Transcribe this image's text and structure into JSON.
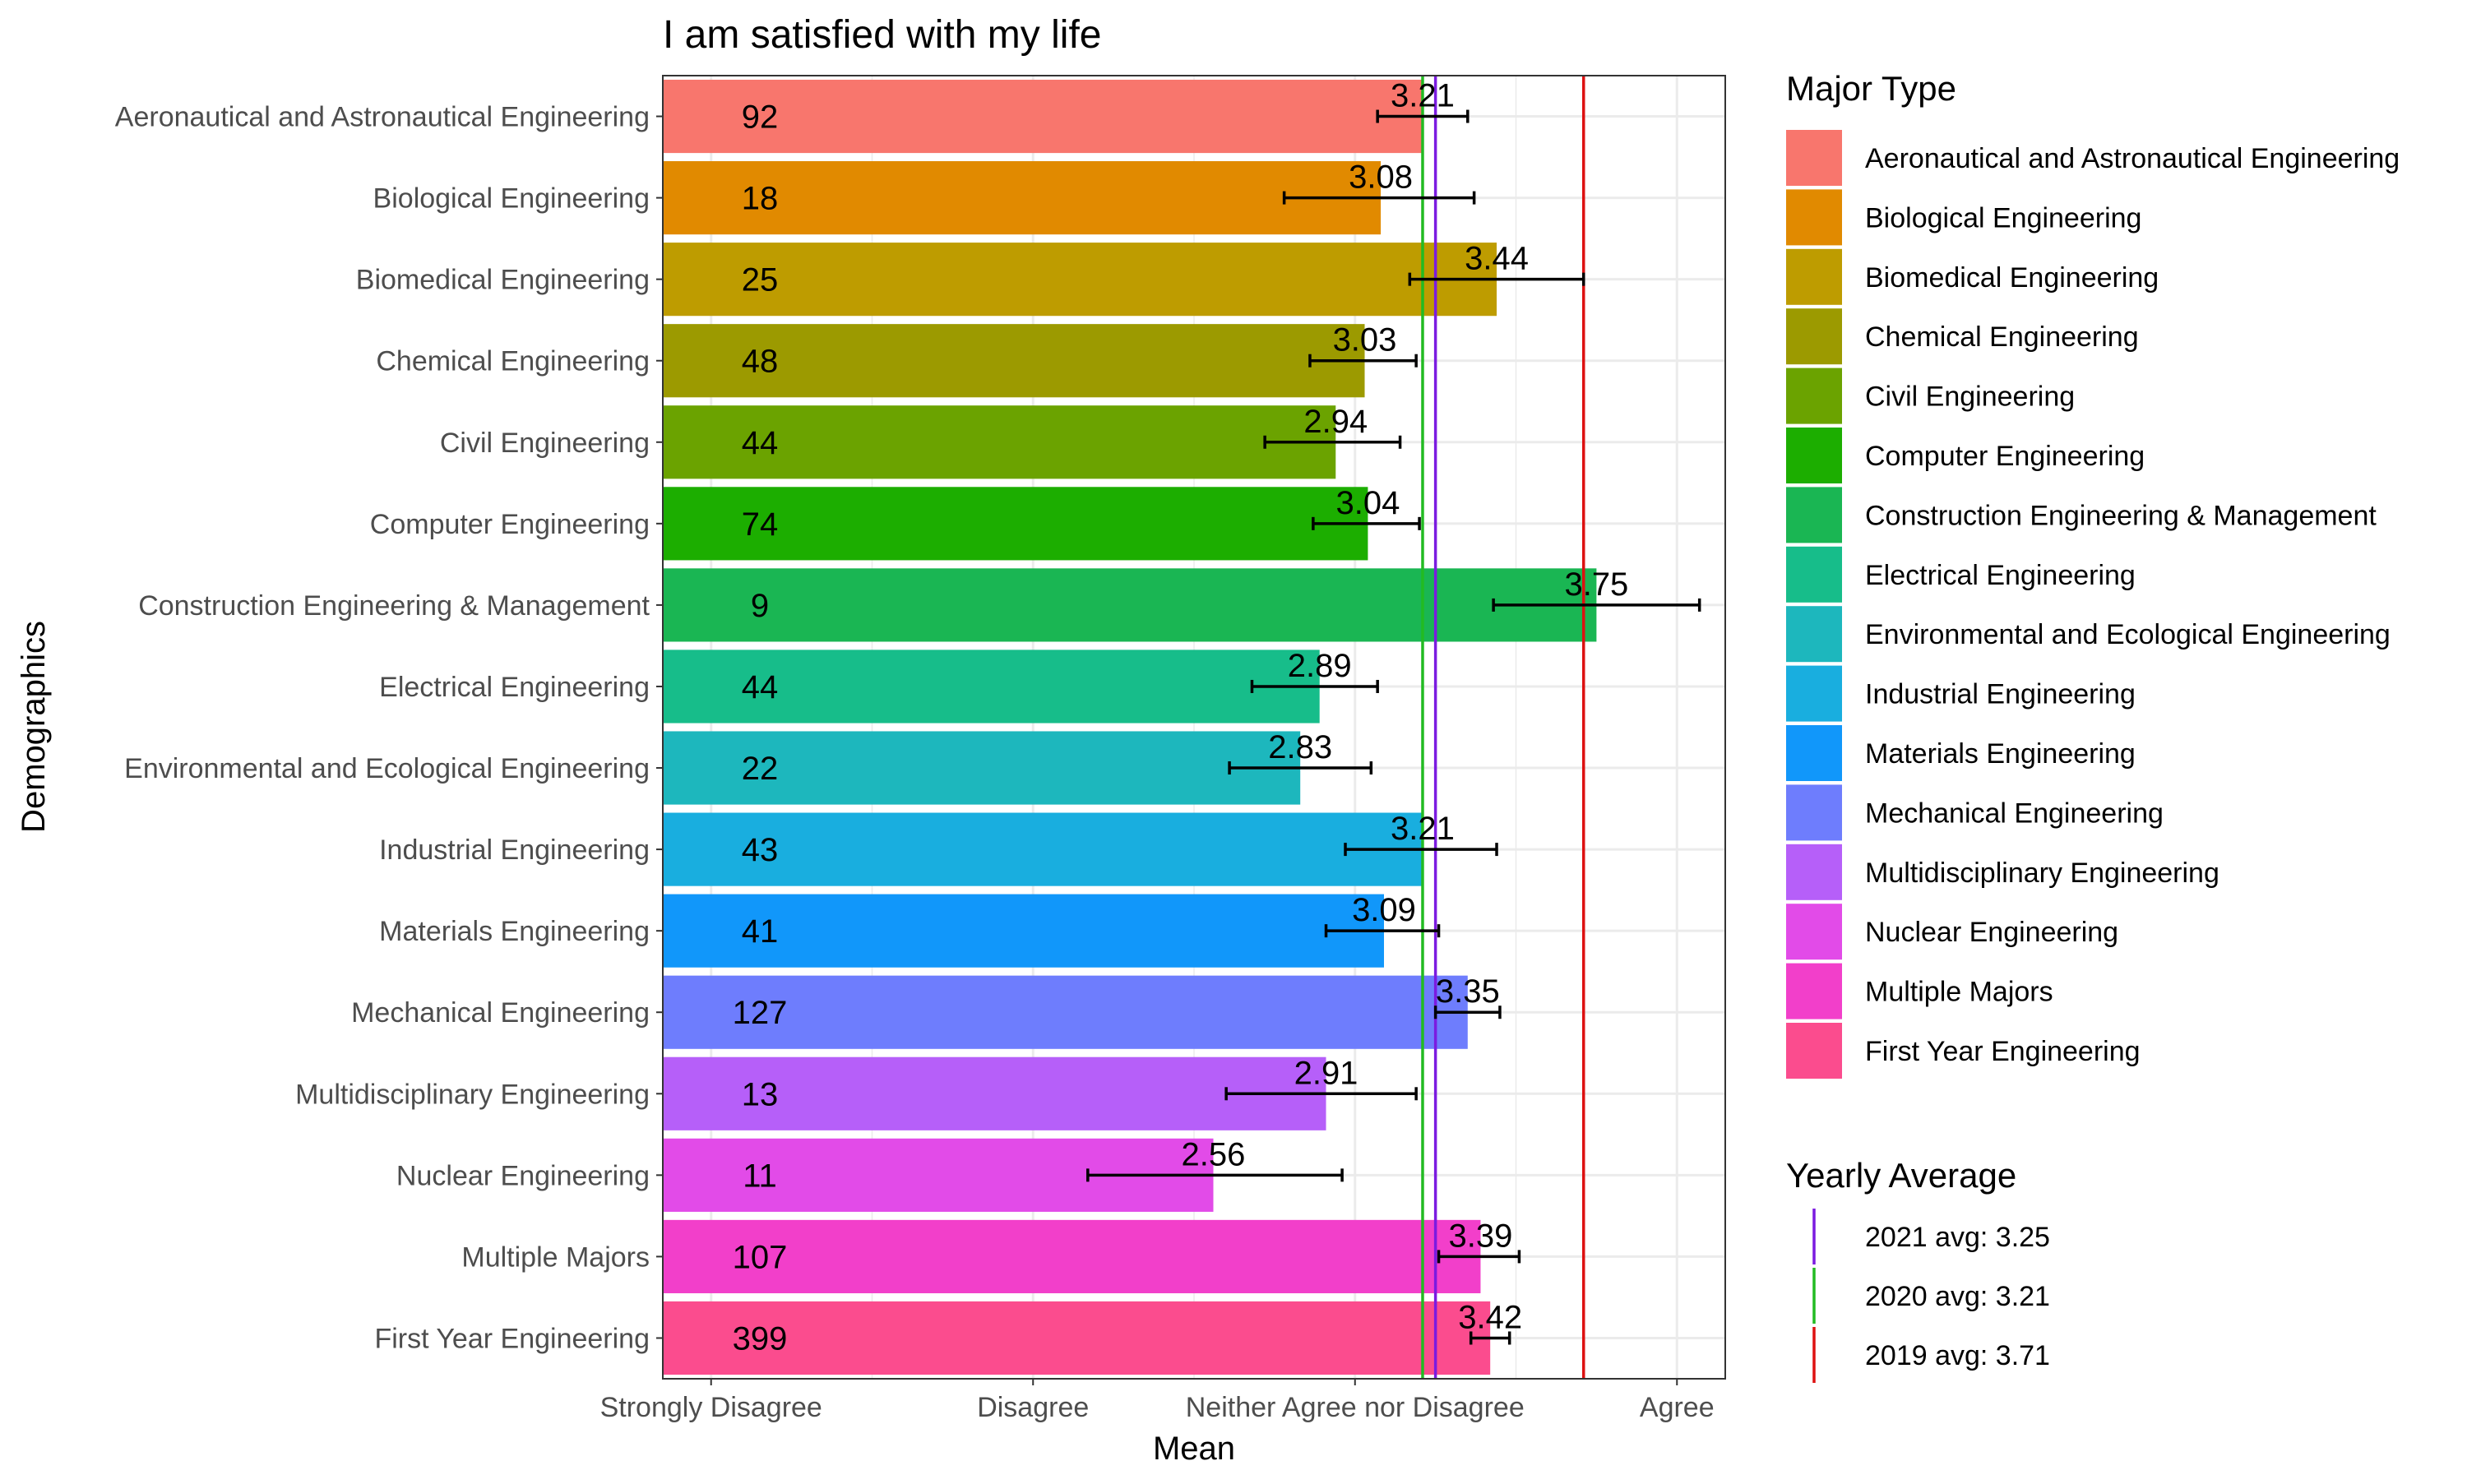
{
  "chart_data": {
    "type": "bar",
    "orientation": "horizontal",
    "title": "I am satisfied with my life",
    "xlabel": "Mean",
    "ylabel": "Demographics",
    "xlim": [
      0.85,
      4.15
    ],
    "x_ticks": [
      {
        "value": 1,
        "label": "Strongly Disagree"
      },
      {
        "value": 2,
        "label": "Disagree"
      },
      {
        "value": 3,
        "label": "Neither Agree nor Disagree"
      },
      {
        "value": 4,
        "label": "Agree"
      }
    ],
    "grid": true,
    "legend_position": "right",
    "categories": [
      "Aeronautical and Astronautical Engineering",
      "Biological Engineering",
      "Biomedical Engineering",
      "Chemical Engineering",
      "Civil Engineering",
      "Computer Engineering",
      "Construction Engineering & Management",
      "Electrical Engineering",
      "Environmental and Ecological Engineering",
      "Industrial Engineering",
      "Materials Engineering",
      "Mechanical Engineering",
      "Multidisciplinary Engineering",
      "Nuclear Engineering",
      "Multiple Majors",
      "First Year Engineering"
    ],
    "values": [
      3.21,
      3.08,
      3.44,
      3.03,
      2.94,
      3.04,
      3.75,
      2.89,
      2.83,
      3.21,
      3.09,
      3.35,
      2.91,
      2.56,
      3.39,
      3.42
    ],
    "value_labels": [
      "3.21",
      "3.08",
      "3.44",
      "3.03",
      "2.94",
      "3.04",
      "3.75",
      "2.89",
      "2.83",
      "3.21",
      "3.09",
      "3.35",
      "2.91",
      "2.56",
      "3.39",
      "3.42"
    ],
    "counts": [
      "92",
      "18",
      "25",
      "48",
      "44",
      "74",
      "9",
      "44",
      "22",
      "43",
      "41",
      "127",
      "13",
      "11",
      "107",
      "399"
    ],
    "error_low": [
      3.07,
      2.78,
      3.17,
      2.86,
      2.72,
      2.87,
      3.43,
      2.68,
      2.61,
      2.97,
      2.91,
      3.25,
      2.6,
      2.17,
      3.26,
      3.36
    ],
    "error_high": [
      3.35,
      3.37,
      3.71,
      3.19,
      3.14,
      3.2,
      4.07,
      3.07,
      3.05,
      3.44,
      3.26,
      3.45,
      3.19,
      2.96,
      3.51,
      3.48
    ],
    "colors": [
      "#F8766D",
      "#E18A00",
      "#BE9C00",
      "#8CAB00",
      "#24B700",
      "#00BE70",
      "#00C1AB",
      "#00BBDA",
      "#00ACFC",
      "#8B93FF",
      "#D575FE",
      "#F962DD",
      "#FF65AC",
      "#DB72FB",
      "#FF61C3",
      "#FF5A8C"
    ],
    "bar_colors": [
      "#F8766D",
      "#E18A00",
      "#BE9C00",
      "#9C9A00",
      "#6BA300",
      "#1CAE00",
      "#1AB653",
      "#17BD8A",
      "#1DB7BD",
      "#19AEDF",
      "#1197FA",
      "#6E7DFD",
      "#B65FF9",
      "#E24BE8",
      "#F23FCA",
      "#FB4C8E"
    ],
    "legend_title": "Major Type",
    "reference_lines_title": "Yearly Average",
    "reference_lines": [
      {
        "label": "2021 avg: 3.25",
        "value": 3.25,
        "color": "#7B1BE0"
      },
      {
        "label": "2020 avg: 3.21",
        "value": 3.21,
        "color": "#22BB22"
      },
      {
        "label": "2019 avg: 3.71",
        "value": 3.71,
        "color": "#DD1111"
      }
    ]
  }
}
